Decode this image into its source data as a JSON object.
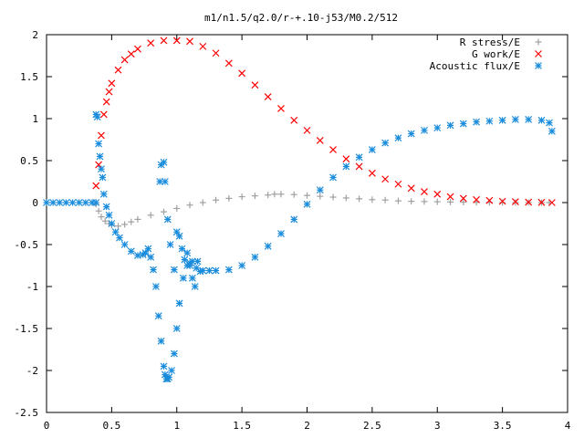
{
  "chart_data": {
    "type": "scatter",
    "title": "m1/n1.5/q2.0/r-+.10-j53/M0.2/512",
    "xlabel": "",
    "ylabel": "",
    "xlim": [
      0,
      4
    ],
    "ylim": [
      -2.5,
      2
    ],
    "xticks": [
      "0",
      "0.5",
      "1",
      "1.5",
      "2",
      "2.5",
      "3",
      "3.5",
      "4"
    ],
    "yticks": [
      "2",
      "1.5",
      "1",
      "0.5",
      "0",
      "-0.5",
      "-1",
      "-1.5",
      "-2",
      "-2.5"
    ],
    "legend_position": "top-right",
    "series": [
      {
        "name": "R stress/E",
        "marker": "plus",
        "color": "#a0a0a0",
        "x": [
          0.38,
          0.4,
          0.42,
          0.45,
          0.48,
          0.5,
          0.55,
          0.6,
          0.65,
          0.7,
          0.8,
          0.9,
          1.0,
          1.1,
          1.2,
          1.3,
          1.4,
          1.5,
          1.6,
          1.7,
          1.75,
          1.8,
          1.9,
          2.0,
          2.1,
          2.2,
          2.3,
          2.4,
          2.5,
          2.6,
          2.7,
          2.8,
          2.9,
          3.0,
          3.1,
          3.2,
          3.3,
          3.4,
          3.5,
          3.6,
          3.7,
          3.8,
          3.86
        ],
        "y": [
          -0.02,
          -0.1,
          -0.17,
          -0.22,
          -0.25,
          -0.27,
          -0.28,
          -0.26,
          -0.23,
          -0.2,
          -0.15,
          -0.11,
          -0.07,
          -0.03,
          0.0,
          0.03,
          0.05,
          0.07,
          0.08,
          0.09,
          0.1,
          0.1,
          0.095,
          0.085,
          0.075,
          0.065,
          0.055,
          0.045,
          0.035,
          0.03,
          0.02,
          0.015,
          0.012,
          0.01,
          0.007,
          0.005,
          0.003,
          0.002,
          0.001,
          0.0,
          0.0,
          0.0,
          0.0
        ]
      },
      {
        "name": "G work/E",
        "marker": "cross",
        "color": "#ff0000",
        "x": [
          0.38,
          0.4,
          0.42,
          0.44,
          0.46,
          0.48,
          0.5,
          0.55,
          0.6,
          0.65,
          0.7,
          0.8,
          0.9,
          1.0,
          1.1,
          1.2,
          1.3,
          1.4,
          1.5,
          1.6,
          1.7,
          1.8,
          1.9,
          2.0,
          2.1,
          2.2,
          2.3,
          2.4,
          2.5,
          2.6,
          2.7,
          2.8,
          2.9,
          3.0,
          3.1,
          3.2,
          3.3,
          3.4,
          3.5,
          3.6,
          3.7,
          3.8,
          3.88
        ],
        "y": [
          0.2,
          0.45,
          0.8,
          1.05,
          1.2,
          1.32,
          1.42,
          1.58,
          1.7,
          1.77,
          1.83,
          1.9,
          1.93,
          1.93,
          1.92,
          1.86,
          1.78,
          1.66,
          1.54,
          1.4,
          1.26,
          1.12,
          0.98,
          0.86,
          0.74,
          0.63,
          0.52,
          0.43,
          0.35,
          0.28,
          0.22,
          0.17,
          0.13,
          0.1,
          0.07,
          0.05,
          0.035,
          0.025,
          0.015,
          0.01,
          0.005,
          0.002,
          0.0
        ]
      },
      {
        "name": "Acoustic flux/E",
        "marker": "star",
        "color": "#1a8cdc",
        "x": [
          0.0,
          0.05,
          0.1,
          0.15,
          0.2,
          0.25,
          0.3,
          0.35,
          0.38,
          0.38,
          0.39,
          0.4,
          0.41,
          0.42,
          0.43,
          0.44,
          0.46,
          0.48,
          0.5,
          0.53,
          0.56,
          0.6,
          0.65,
          0.7,
          0.74,
          0.76,
          0.78,
          0.8,
          0.82,
          0.84,
          0.86,
          0.88,
          0.9,
          0.91,
          0.92,
          0.93,
          0.94,
          0.96,
          0.98,
          1.0,
          1.02,
          1.05,
          1.08,
          1.1,
          1.12,
          1.15,
          1.18,
          1.2,
          1.25,
          1.3,
          1.4,
          1.5,
          1.6,
          1.7,
          1.8,
          1.9,
          2.0,
          2.1,
          2.2,
          2.3,
          2.4,
          2.5,
          2.6,
          2.7,
          2.8,
          2.9,
          3.0,
          3.1,
          3.2,
          3.3,
          3.4,
          3.5,
          3.6,
          3.7,
          3.8,
          3.86,
          3.88,
          0.87,
          0.88,
          0.9,
          0.91,
          0.93,
          0.95,
          0.98,
          1.0,
          1.02,
          1.04,
          1.06,
          1.08,
          1.1,
          1.12,
          1.14,
          1.16
        ],
        "y": [
          0.0,
          0.0,
          0.0,
          0.0,
          0.0,
          0.0,
          0.0,
          0.0,
          0.0,
          1.05,
          1.02,
          0.7,
          0.55,
          0.4,
          0.3,
          0.1,
          -0.05,
          -0.15,
          -0.25,
          -0.35,
          -0.42,
          -0.5,
          -0.58,
          -0.63,
          -0.62,
          -0.6,
          -0.55,
          -0.65,
          -0.8,
          -1.0,
          -1.35,
          -1.65,
          -1.95,
          -2.05,
          -2.1,
          -2.1,
          -2.08,
          -2.0,
          -1.8,
          -1.5,
          -1.2,
          -0.9,
          -0.75,
          -0.72,
          -0.7,
          -0.78,
          -0.82,
          -0.81,
          -0.81,
          -0.81,
          -0.8,
          -0.75,
          -0.65,
          -0.52,
          -0.37,
          -0.2,
          -0.02,
          0.15,
          0.3,
          0.43,
          0.54,
          0.63,
          0.71,
          0.77,
          0.82,
          0.86,
          0.89,
          0.92,
          0.94,
          0.96,
          0.97,
          0.98,
          0.99,
          0.99,
          0.98,
          0.95,
          0.85,
          0.25,
          0.45,
          0.48,
          0.25,
          -0.2,
          -0.5,
          -0.8,
          -0.35,
          -0.4,
          -0.55,
          -0.68,
          -0.6,
          -0.75,
          -0.9,
          -1.0,
          -0.7
        ]
      }
    ]
  }
}
